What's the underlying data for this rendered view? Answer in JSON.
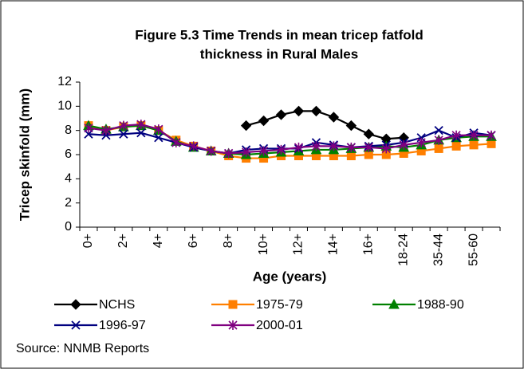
{
  "chart_data": {
    "type": "line",
    "title": "Figure 5.3 Time Trends in mean tricep fatfold",
    "subtitle": "thickness in Rural Males",
    "x_label": "Age (years)",
    "y_label": "Tricep skinfold (mm)",
    "source": "Source: NNMB Reports",
    "categories": [
      "0+",
      null,
      "2+",
      null,
      "4+",
      null,
      "6+",
      null,
      "8+",
      null,
      "10+",
      null,
      "12+",
      null,
      "14+",
      null,
      "16+",
      null,
      "18-24",
      null,
      "35-44",
      null,
      "55-60",
      null
    ],
    "ylim": [
      0,
      12
    ],
    "yticks": [
      0,
      2,
      4,
      6,
      8,
      10,
      12
    ],
    "series": [
      {
        "name": "NCHS",
        "color": "#000000",
        "marker": "diamond",
        "values": [
          null,
          null,
          null,
          null,
          null,
          null,
          null,
          null,
          null,
          8.4,
          8.8,
          9.3,
          9.6,
          9.6,
          9.1,
          8.4,
          7.7,
          7.3,
          7.4,
          null,
          null,
          null,
          null,
          null
        ]
      },
      {
        "name": "1975-79",
        "color": "#ff7f00",
        "marker": "square",
        "values": [
          8.4,
          8.0,
          8.3,
          8.4,
          8.0,
          7.2,
          6.7,
          6.3,
          5.9,
          5.7,
          5.7,
          5.9,
          5.9,
          5.9,
          5.9,
          5.9,
          6.0,
          6.0,
          6.1,
          6.3,
          6.5,
          6.7,
          6.8,
          6.9
        ]
      },
      {
        "name": "1988-90",
        "color": "#008000",
        "marker": "triangle",
        "values": [
          8.4,
          8.1,
          8.3,
          8.4,
          8.0,
          7.1,
          6.6,
          6.3,
          6.1,
          6.0,
          6.1,
          6.2,
          6.3,
          6.4,
          6.4,
          6.5,
          6.6,
          6.7,
          6.6,
          6.8,
          7.2,
          7.4,
          7.5,
          7.5
        ]
      },
      {
        "name": "1996-97",
        "color": "#000080",
        "marker": "x",
        "values": [
          7.7,
          7.6,
          7.7,
          7.8,
          7.4,
          7.0,
          6.6,
          6.3,
          6.1,
          6.4,
          6.5,
          6.5,
          6.5,
          7.0,
          6.8,
          6.6,
          6.7,
          6.8,
          7.0,
          7.4,
          8.0,
          7.4,
          7.8,
          7.6
        ]
      },
      {
        "name": "2000-01",
        "color": "#800080",
        "marker": "star",
        "values": [
          8.2,
          8.0,
          8.4,
          8.5,
          8.1,
          7.0,
          6.7,
          6.3,
          6.1,
          6.2,
          6.3,
          6.4,
          6.6,
          6.7,
          6.7,
          6.6,
          6.6,
          6.5,
          6.8,
          7.0,
          7.2,
          7.6,
          7.6,
          7.6
        ]
      }
    ],
    "grid": false
  }
}
